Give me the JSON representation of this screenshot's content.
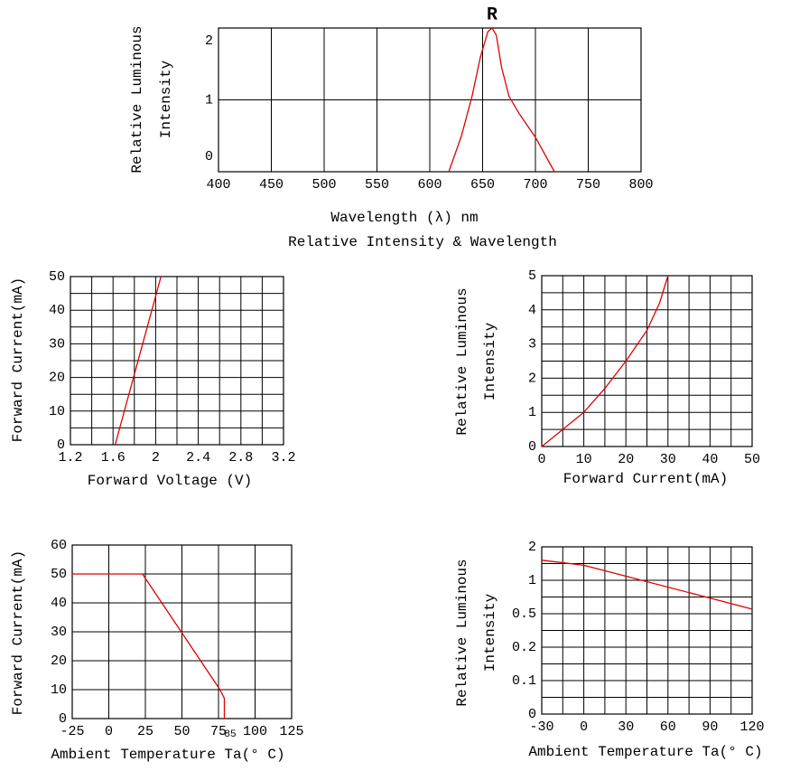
{
  "chart_data": [
    {
      "type": "line",
      "title": "R",
      "ylabel": [
        "Relative Luminous",
        "Intensity"
      ],
      "xlabel": "Wavelength (λ) nm",
      "caption": "Relative Intensity & Wavelength",
      "x": [
        618,
        630,
        640,
        648,
        655,
        659,
        663,
        668,
        675,
        685,
        700,
        718
      ],
      "values": [
        0,
        0.5,
        1.05,
        1.6,
        1.95,
        2.0,
        1.9,
        1.45,
        1.05,
        0.8,
        0.48,
        0
      ],
      "color": "#e00000",
      "xlim": [
        400,
        800
      ],
      "ylim": [
        0,
        2
      ],
      "xticks": [
        400,
        450,
        500,
        550,
        600,
        650,
        700,
        750,
        800
      ],
      "yticks": [
        0,
        1,
        2
      ],
      "grid": true
    },
    {
      "type": "line",
      "ylabel": "Forward Current(mA)",
      "xlabel": "Forward Voltage (V)",
      "x": [
        1.62,
        2.05
      ],
      "values": [
        0,
        50
      ],
      "color": "#e00000",
      "xlim": [
        1.2,
        3.2
      ],
      "ylim": [
        0,
        50
      ],
      "xticks": [
        1.2,
        1.6,
        2.0,
        2.4,
        2.8,
        3.2
      ],
      "yticks": [
        0,
        10,
        20,
        30,
        40,
        50
      ],
      "xgrid": [
        1.2,
        1.4,
        1.6,
        1.8,
        2.0,
        2.2,
        2.4,
        2.6,
        2.8,
        3.0,
        3.2
      ],
      "ygrid": [
        0,
        5,
        10,
        15,
        20,
        25,
        30,
        35,
        40,
        45,
        50
      ],
      "grid": true
    },
    {
      "type": "line",
      "ylabel": [
        "Relative Luminous",
        "Intensity"
      ],
      "xlabel": "Forward Current(mA)",
      "x": [
        0,
        5,
        10,
        15,
        20,
        25,
        28,
        30
      ],
      "values": [
        0,
        0.5,
        1.0,
        1.7,
        2.5,
        3.4,
        4.2,
        5.0
      ],
      "color": "#e00000",
      "xlim": [
        0,
        50
      ],
      "ylim": [
        0,
        5
      ],
      "xticks": [
        0,
        10,
        20,
        30,
        40,
        50
      ],
      "yticks": [
        0,
        1,
        2,
        3,
        4,
        5
      ],
      "xgrid": [
        0,
        5,
        10,
        15,
        20,
        25,
        30,
        35,
        40,
        45,
        50
      ],
      "ygrid": [
        0,
        0.5,
        1,
        1.5,
        2,
        2.5,
        3,
        3.5,
        4,
        4.5,
        5
      ],
      "grid": true
    },
    {
      "type": "line",
      "ylabel": "Forward Current(mA)",
      "xlabel": "Ambient Temperature Ta(° C)",
      "annotation": "85",
      "x": [
        -25,
        23,
        76,
        79,
        79
      ],
      "values": [
        50,
        50,
        10,
        7,
        0
      ],
      "color": "#e00000",
      "xlim": [
        -25,
        125
      ],
      "ylim": [
        0,
        60
      ],
      "xticks": [
        -25,
        0,
        25,
        50,
        75,
        100,
        125
      ],
      "yticks": [
        0,
        10,
        20,
        30,
        40,
        50,
        60
      ],
      "grid": true
    },
    {
      "type": "line",
      "ylabel": [
        "Relative Luminous",
        "Intensity"
      ],
      "xlabel": "Ambient Temperature Ta(° C)",
      "x": [
        -30,
        0,
        120
      ],
      "values": [
        1.6,
        1.45,
        0.57
      ],
      "color": "#e00000",
      "xlim": [
        -30,
        120
      ],
      "ylim": [
        0,
        2
      ],
      "yscale": "piecewise",
      "xticks": [
        -30,
        0,
        30,
        60,
        90,
        120
      ],
      "yticks": [
        0,
        0.1,
        0.2,
        0.5,
        1,
        2
      ],
      "xgrid": [
        -30,
        -15,
        0,
        15,
        30,
        45,
        60,
        75,
        90,
        105,
        120
      ],
      "ygrid": [
        0,
        0.05,
        0.1,
        0.15,
        0.2,
        0.35,
        0.5,
        0.75,
        1,
        1.5,
        2
      ],
      "grid": true
    }
  ]
}
